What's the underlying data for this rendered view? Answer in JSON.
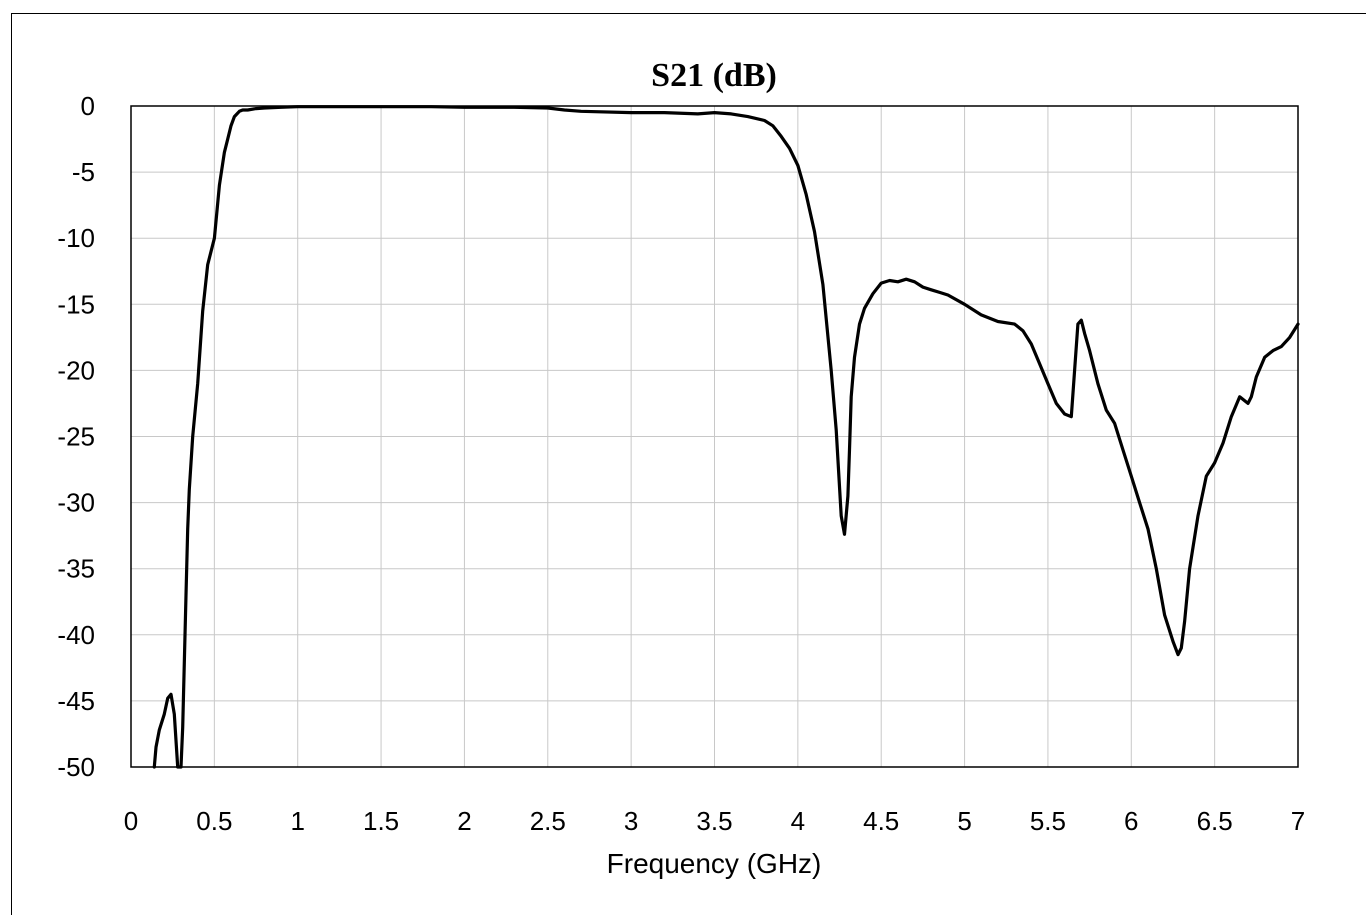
{
  "chart_data": {
    "type": "line",
    "title": "S21 (dB)",
    "xlabel": "Frequency (GHz)",
    "ylabel": "",
    "xlim": [
      0,
      7
    ],
    "ylim": [
      -50,
      0
    ],
    "xticks": [
      "0",
      "0.5",
      "1",
      "1.5",
      "2",
      "2.5",
      "3",
      "3.5",
      "4",
      "4.5",
      "5",
      "5.5",
      "6",
      "6.5",
      "7"
    ],
    "yticks": [
      "0",
      "-5",
      "-10",
      "-15",
      "-20",
      "-25",
      "-30",
      "-35",
      "-40",
      "-45",
      "-50"
    ],
    "grid": true,
    "legend": false,
    "line_color": "#000000",
    "series": [
      {
        "x": [
          0.14,
          0.15,
          0.17,
          0.2,
          0.22,
          0.24,
          0.26,
          0.28,
          0.29,
          0.3,
          0.31,
          0.33,
          0.34,
          0.35,
          0.37,
          0.4,
          0.43,
          0.46,
          0.5,
          0.53,
          0.56,
          0.58,
          0.6,
          0.62,
          0.65,
          0.67,
          0.7,
          0.75,
          0.8,
          0.9,
          1.0,
          1.2,
          1.5,
          1.8,
          2.0,
          2.3,
          2.5,
          2.6,
          2.7,
          3.0,
          3.2,
          3.4,
          3.5,
          3.6,
          3.7,
          3.8,
          3.85,
          3.9,
          3.95,
          4.0,
          4.05,
          4.1,
          4.15,
          4.2,
          4.23,
          4.26,
          4.28,
          4.3,
          4.31,
          4.32,
          4.34,
          4.37,
          4.4,
          4.45,
          4.5,
          4.55,
          4.6,
          4.65,
          4.7,
          4.75,
          4.8,
          4.85,
          4.9,
          5.0,
          5.1,
          5.2,
          5.3,
          5.35,
          5.4,
          5.45,
          5.5,
          5.55,
          5.6,
          5.64,
          5.66,
          5.68,
          5.7,
          5.72,
          5.75,
          5.8,
          5.85,
          5.9,
          5.95,
          6.0,
          6.05,
          6.1,
          6.15,
          6.2,
          6.25,
          6.28,
          6.3,
          6.32,
          6.35,
          6.4,
          6.45,
          6.5,
          6.55,
          6.6,
          6.65,
          6.68,
          6.7,
          6.72,
          6.75,
          6.8,
          6.85,
          6.9,
          6.95,
          7.0
        ],
        "y": [
          -50,
          -48.5,
          -47.2,
          -46,
          -44.8,
          -44.5,
          -46,
          -50,
          -50,
          -50,
          -47,
          -37,
          -32,
          -29,
          -25,
          -21,
          -15.5,
          -12,
          -10,
          -6,
          -3.5,
          -2.5,
          -1.5,
          -0.8,
          -0.4,
          -0.3,
          -0.3,
          -0.2,
          -0.15,
          -0.1,
          -0.05,
          -0.05,
          -0.05,
          -0.05,
          -0.1,
          -0.1,
          -0.15,
          -0.3,
          -0.4,
          -0.5,
          -0.5,
          -0.6,
          -0.5,
          -0.6,
          -0.8,
          -1.1,
          -1.5,
          -2.3,
          -3.2,
          -4.5,
          -6.7,
          -9.5,
          -13.5,
          -20,
          -24.5,
          -31,
          -32.4,
          -29.5,
          -26,
          -22,
          -19,
          -16.5,
          -15.3,
          -14.2,
          -13.4,
          -13.2,
          -13.3,
          -13.1,
          -13.3,
          -13.7,
          -13.9,
          -14.1,
          -14.3,
          -15,
          -15.8,
          -16.3,
          -16.5,
          -17,
          -18,
          -19.5,
          -21,
          -22.5,
          -23.3,
          -23.5,
          -20,
          -16.5,
          -16.2,
          -17.2,
          -18.5,
          -21,
          -23,
          -24,
          -26,
          -28,
          -30,
          -32,
          -35,
          -38.5,
          -40.5,
          -41.5,
          -41,
          -39,
          -35,
          -31,
          -28,
          -27,
          -25.5,
          -23.5,
          -22,
          -22.3,
          -22.5,
          -22,
          -20.5,
          -19,
          -18.5,
          -18.2,
          -17.5,
          -16.5
        ]
      }
    ]
  }
}
